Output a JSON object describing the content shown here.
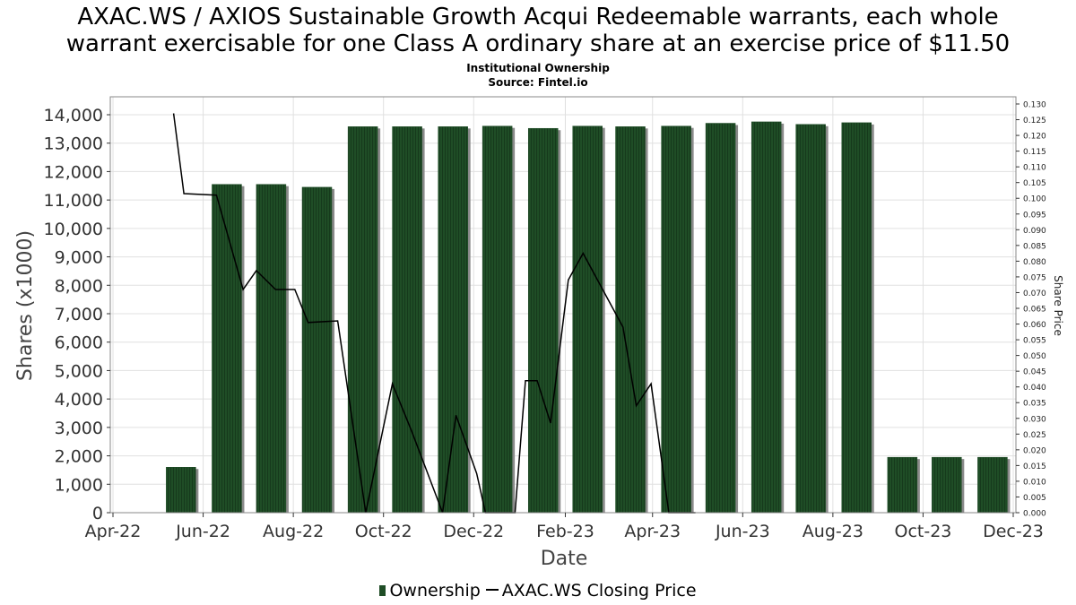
{
  "colors": {
    "bar": "#1f4d26",
    "bar_stripe": "#163a1c",
    "bar_shadow": "#8a8a8a",
    "line": "#000000",
    "grid": "#e0e0e0",
    "axis": "#888888"
  },
  "chart_data": {
    "type": "bar",
    "title_lines": [
      "AXAC.WS / AXIOS Sustainable Growth Acqui Redeemable warrants, each whole",
      "warrant exercisable for one Class A ordinary share at an exercise price of $11.50"
    ],
    "subtitle_lines": [
      "Institutional Ownership",
      "Source: Fintel.io"
    ],
    "xlabel": "Date",
    "ylabel": "Shares (x1000)",
    "y2label": "Share Price",
    "grid": true,
    "legend_position": "bottom",
    "x_range": [
      "2022-04-01",
      "2023-12-01"
    ],
    "x_ticks": [
      {
        "date": "2022-04-01",
        "label": "Apr-22"
      },
      {
        "date": "2022-06-01",
        "label": "Jun-22"
      },
      {
        "date": "2022-08-01",
        "label": "Aug-22"
      },
      {
        "date": "2022-10-01",
        "label": "Oct-22"
      },
      {
        "date": "2022-12-01",
        "label": "Dec-22"
      },
      {
        "date": "2023-02-01",
        "label": "Feb-23"
      },
      {
        "date": "2023-04-01",
        "label": "Apr-23"
      },
      {
        "date": "2023-06-01",
        "label": "Jun-23"
      },
      {
        "date": "2023-08-01",
        "label": "Aug-23"
      },
      {
        "date": "2023-10-01",
        "label": "Oct-23"
      },
      {
        "date": "2023-12-01",
        "label": "Dec-23"
      }
    ],
    "y_range": [
      0,
      14000
    ],
    "y_ticks": [
      {
        "value": 0,
        "label": "0"
      },
      {
        "value": 1000,
        "label": "1,000"
      },
      {
        "value": 2000,
        "label": "2,000"
      },
      {
        "value": 3000,
        "label": "3,000"
      },
      {
        "value": 4000,
        "label": "4,000"
      },
      {
        "value": 5000,
        "label": "5,000"
      },
      {
        "value": 6000,
        "label": "6,000"
      },
      {
        "value": 7000,
        "label": "7,000"
      },
      {
        "value": 8000,
        "label": "8,000"
      },
      {
        "value": 9000,
        "label": "9,000"
      },
      {
        "value": 10000,
        "label": "10,000"
      },
      {
        "value": 11000,
        "label": "11,000"
      },
      {
        "value": 12000,
        "label": "12,000"
      },
      {
        "value": 13000,
        "label": "13,000"
      },
      {
        "value": 14000,
        "label": "14,000"
      }
    ],
    "y2_range": [
      0,
      0.13
    ],
    "y2_ticks": [
      {
        "value": 0.0,
        "label": "0.000"
      },
      {
        "value": 0.005,
        "label": "0.005"
      },
      {
        "value": 0.01,
        "label": "0.010"
      },
      {
        "value": 0.015,
        "label": "0.015"
      },
      {
        "value": 0.02,
        "label": "0.020"
      },
      {
        "value": 0.025,
        "label": "0.025"
      },
      {
        "value": 0.03,
        "label": "0.030"
      },
      {
        "value": 0.035,
        "label": "0.035"
      },
      {
        "value": 0.04,
        "label": "0.040"
      },
      {
        "value": 0.045,
        "label": "0.045"
      },
      {
        "value": 0.05,
        "label": "0.050"
      },
      {
        "value": 0.055,
        "label": "0.055"
      },
      {
        "value": 0.06,
        "label": "0.060"
      },
      {
        "value": 0.065,
        "label": "0.065"
      },
      {
        "value": 0.07,
        "label": "0.070"
      },
      {
        "value": 0.075,
        "label": "0.075"
      },
      {
        "value": 0.08,
        "label": "0.080"
      },
      {
        "value": 0.085,
        "label": "0.085"
      },
      {
        "value": 0.09,
        "label": "0.090"
      },
      {
        "value": 0.095,
        "label": "0.095"
      },
      {
        "value": 0.1,
        "label": "0.100"
      },
      {
        "value": 0.105,
        "label": "0.105"
      },
      {
        "value": 0.11,
        "label": "0.110"
      },
      {
        "value": 0.115,
        "label": "0.115"
      },
      {
        "value": 0.12,
        "label": "0.120"
      },
      {
        "value": 0.125,
        "label": "0.125"
      },
      {
        "value": 0.13,
        "label": "0.130"
      }
    ],
    "series": [
      {
        "name": "Ownership",
        "type": "bar",
        "axis": "left",
        "points": [
          {
            "date": "2022-05-17",
            "value": 1600
          },
          {
            "date": "2022-06-17",
            "value": 11550
          },
          {
            "date": "2022-07-17",
            "value": 11550
          },
          {
            "date": "2022-08-17",
            "value": 11450
          },
          {
            "date": "2022-09-17",
            "value": 13580
          },
          {
            "date": "2022-10-17",
            "value": 13580
          },
          {
            "date": "2022-11-17",
            "value": 13580
          },
          {
            "date": "2022-12-17",
            "value": 13600
          },
          {
            "date": "2023-01-17",
            "value": 13520
          },
          {
            "date": "2023-02-16",
            "value": 13600
          },
          {
            "date": "2023-03-17",
            "value": 13580
          },
          {
            "date": "2023-04-17",
            "value": 13600
          },
          {
            "date": "2023-05-17",
            "value": 13700
          },
          {
            "date": "2023-06-17",
            "value": 13750
          },
          {
            "date": "2023-07-17",
            "value": 13660
          },
          {
            "date": "2023-08-17",
            "value": 13720
          },
          {
            "date": "2023-09-17",
            "value": 1950
          },
          {
            "date": "2023-10-17",
            "value": 1950
          },
          {
            "date": "2023-11-17",
            "value": 1950
          }
        ]
      },
      {
        "name": "AXAC.WS Closing Price",
        "type": "line",
        "axis": "right",
        "points": [
          {
            "date": "2022-05-12",
            "value": 0.127
          },
          {
            "date": "2022-05-19",
            "value": 0.1015
          },
          {
            "date": "2022-06-10",
            "value": 0.101
          },
          {
            "date": "2022-06-28",
            "value": 0.071
          },
          {
            "date": "2022-07-07",
            "value": 0.077
          },
          {
            "date": "2022-07-20",
            "value": 0.071
          },
          {
            "date": "2022-08-02",
            "value": 0.071
          },
          {
            "date": "2022-08-11",
            "value": 0.0605
          },
          {
            "date": "2022-08-31",
            "value": 0.061
          },
          {
            "date": "2022-09-19",
            "value": 0.0
          },
          {
            "date": "2022-10-07",
            "value": 0.041
          },
          {
            "date": "2022-10-20",
            "value": 0.026
          },
          {
            "date": "2022-11-10",
            "value": 0.0
          },
          {
            "date": "2022-11-19",
            "value": 0.031
          },
          {
            "date": "2022-12-03",
            "value": 0.0125
          },
          {
            "date": "2022-12-09",
            "value": 0.0
          },
          {
            "date": "2022-12-29",
            "value": 0.0
          },
          {
            "date": "2023-01-05",
            "value": 0.042
          },
          {
            "date": "2023-01-13",
            "value": 0.042
          },
          {
            "date": "2023-01-22",
            "value": 0.0285
          },
          {
            "date": "2023-02-03",
            "value": 0.074
          },
          {
            "date": "2023-02-13",
            "value": 0.0825
          },
          {
            "date": "2023-03-12",
            "value": 0.059
          },
          {
            "date": "2023-03-21",
            "value": 0.034
          },
          {
            "date": "2023-03-31",
            "value": 0.041
          },
          {
            "date": "2023-04-12",
            "value": 0.0
          },
          {
            "date": "2023-04-30",
            "value": 0.0
          }
        ]
      }
    ]
  }
}
